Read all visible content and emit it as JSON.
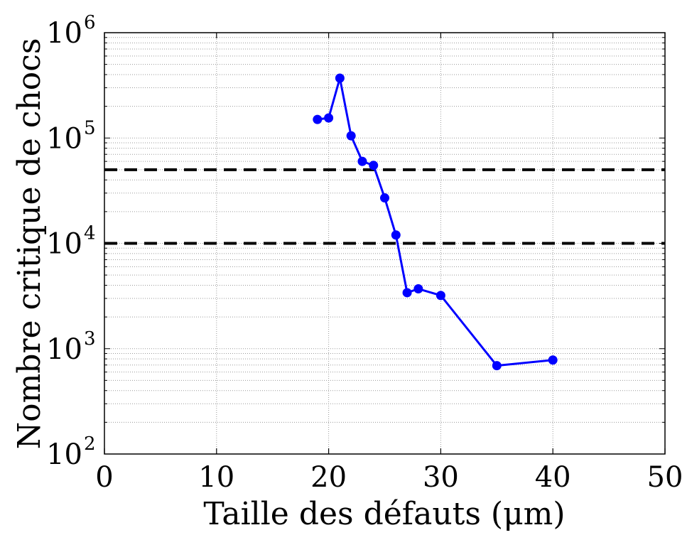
{
  "chart_data": {
    "type": "line",
    "title": "",
    "xlabel": "Taille des défauts (μm)",
    "ylabel": "Nombre critique de chocs",
    "xlim": [
      0,
      50
    ],
    "ylim": [
      100,
      1000000
    ],
    "yscale": "log",
    "grid": true,
    "x_ticks": [
      0,
      10,
      20,
      30,
      40,
      50
    ],
    "x_tick_labels": [
      "0",
      "10",
      "20",
      "30",
      "40",
      "50"
    ],
    "y_ticks": [
      100,
      1000,
      10000,
      100000,
      1000000
    ],
    "y_tick_labels": [
      {
        "base": "10",
        "exp": "2"
      },
      {
        "base": "10",
        "exp": "3"
      },
      {
        "base": "10",
        "exp": "4"
      },
      {
        "base": "10",
        "exp": "5"
      },
      {
        "base": "10",
        "exp": "6"
      }
    ],
    "series": [
      {
        "color": "#0000ff",
        "marker": "circle",
        "x": [
          19,
          20,
          21,
          22,
          23,
          24,
          25,
          26,
          27,
          28,
          30,
          35,
          40
        ],
        "y": [
          150000,
          155000,
          370000,
          105000,
          60000,
          55000,
          27000,
          12000,
          3400,
          3700,
          3200,
          690,
          780
        ]
      }
    ],
    "reference_lines": [
      {
        "y": 50000,
        "style": "dashed",
        "color": "#000000"
      },
      {
        "y": 10000,
        "style": "dashed",
        "color": "#000000"
      }
    ]
  }
}
